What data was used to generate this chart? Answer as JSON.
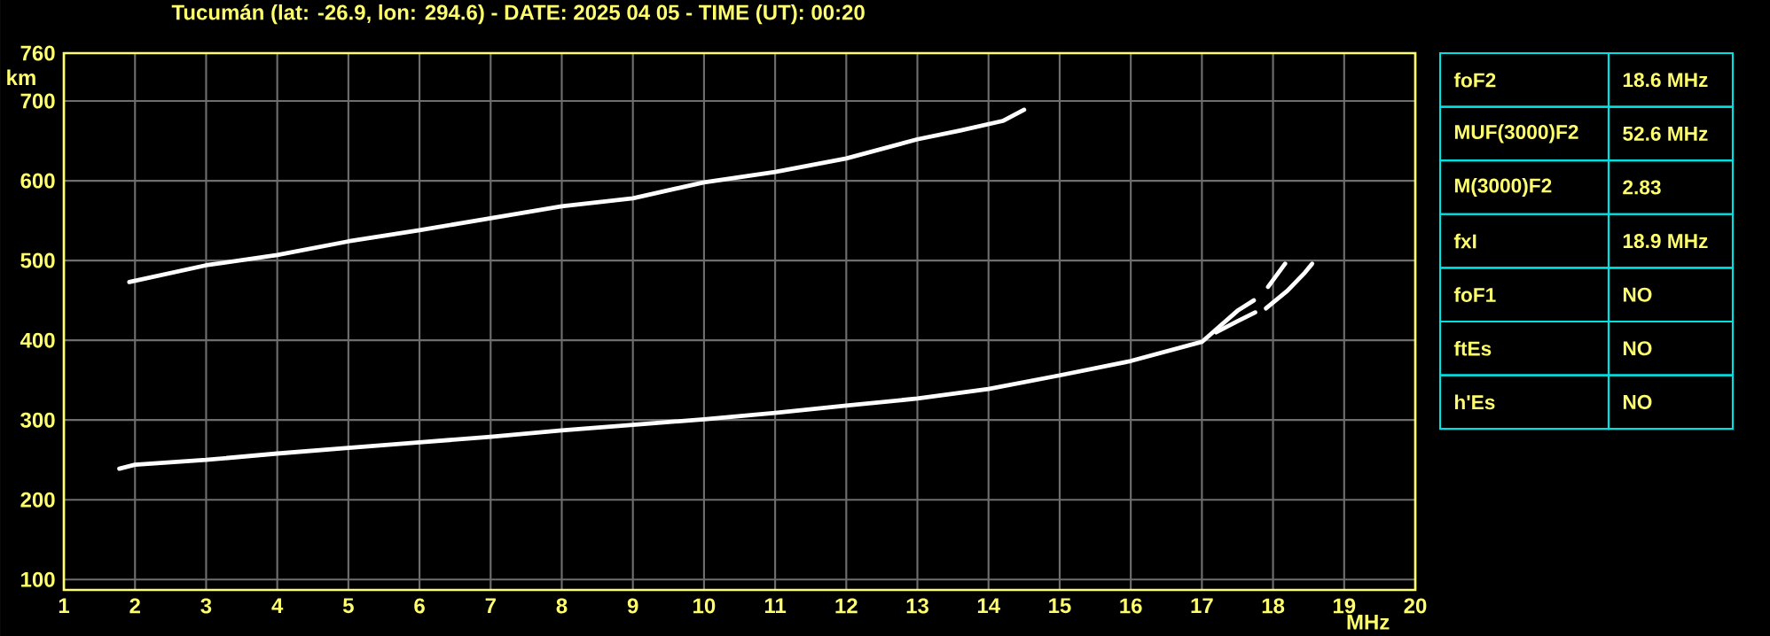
{
  "chart_data": [
    {
      "type": "line",
      "title": "Tucumán (lat: -26.9, lon: 294.6) - DATE: 2025 04 05 - TIME (UT): 00:20",
      "xlabel": "MHz",
      "ylabel": "km",
      "xlim": [
        1,
        20
      ],
      "ylim": [
        87,
        760
      ],
      "xticks": [
        1,
        2,
        3,
        4,
        5,
        6,
        7,
        8,
        9,
        10,
        11,
        12,
        13,
        14,
        15,
        16,
        17,
        18,
        19,
        20
      ],
      "yticks": [
        100,
        200,
        300,
        400,
        500,
        600,
        700,
        760
      ],
      "grid": true,
      "marker": "none",
      "line_style": "solid",
      "series": [
        {
          "color": "#ffffff",
          "x": [
            1.78,
            2,
            3,
            4,
            5,
            6,
            7,
            8,
            9,
            10,
            11,
            12,
            13,
            14,
            15,
            16,
            17,
            17.5,
            17.73,
            17.83,
            17.93,
            18.17
          ],
          "values": [
            239,
            244,
            250,
            258,
            265,
            272,
            279,
            287,
            294,
            301,
            309,
            318,
            327,
            339,
            356,
            374,
            398,
            437,
            450,
            null,
            467,
            496
          ]
        },
        {
          "color": "#ffffff",
          "x": [
            17.2,
            17.5,
            17.75,
            17.83,
            17.9,
            18.2,
            18.45,
            18.55
          ],
          "values": [
            410,
            424,
            435,
            null,
            440,
            462,
            485,
            496
          ]
        },
        {
          "color": "#ffffff",
          "x": [
            1.92,
            3,
            4,
            5,
            6,
            7,
            8,
            9,
            10,
            11,
            12,
            13,
            13.6,
            14.2,
            14.5
          ],
          "values": [
            473,
            494,
            507,
            524,
            538,
            553,
            568,
            578,
            598,
            611,
            628,
            652,
            663,
            675,
            689
          ]
        }
      ]
    },
    {
      "type": "other",
      "y_categories": [
        "foF2",
        "MUF(3000)F2",
        "M(3000)F2",
        "fxI",
        "foF1",
        "ftEs",
        "h'Es"
      ],
      "cell_labels": [
        [
          "18.6 MHz"
        ],
        [
          "52.6 MHz"
        ],
        [
          "2.83"
        ],
        [
          "18.9 MHz"
        ],
        [
          "NO"
        ],
        [
          "NO"
        ],
        [
          "NO"
        ]
      ]
    }
  ]
}
